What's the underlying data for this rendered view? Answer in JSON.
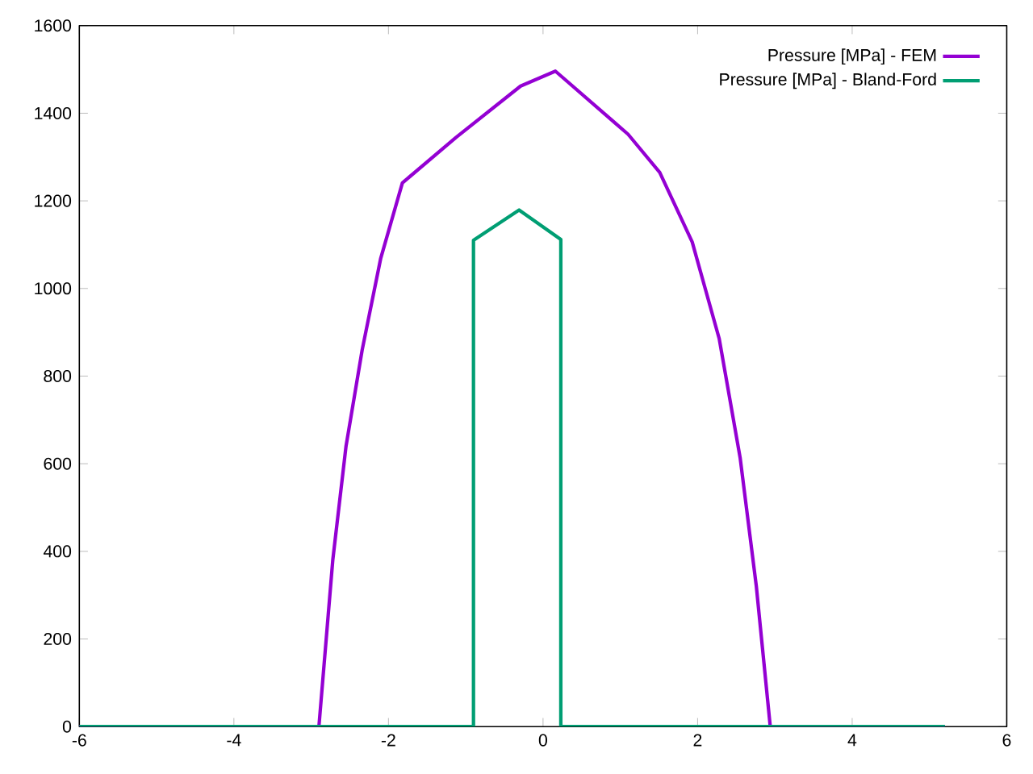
{
  "chart_data": {
    "type": "line",
    "series": [
      {
        "name": "Pressure [MPa] - FEM",
        "color": "#9400d3",
        "x": [
          -6,
          -2.9,
          -2.72,
          -2.55,
          -2.34,
          -2.1,
          -1.82,
          -1.125,
          -0.29,
          0.16,
          1.1,
          1.51,
          1.93,
          2.28,
          2.55,
          2.76,
          2.94,
          5.2
        ],
        "values": [
          0,
          0,
          381,
          639,
          860,
          1069,
          1241,
          1345,
          1462,
          1496,
          1352,
          1265,
          1106,
          885,
          614,
          320,
          0,
          0
        ]
      },
      {
        "name": "Pressure [MPa] - Bland-Ford",
        "color": "#009e73",
        "x": [
          -6,
          -0.9,
          -0.9,
          -0.31,
          0.23,
          0.23,
          5.2
        ],
        "values": [
          0,
          0,
          1110,
          1179,
          1112,
          0,
          0
        ]
      }
    ],
    "xlim": [
      -6,
      6
    ],
    "ylim": [
      0,
      1600
    ],
    "xticks": [
      -6,
      -4,
      -2,
      0,
      2,
      4,
      6
    ],
    "yticks": [
      0,
      200,
      400,
      600,
      800,
      1000,
      1200,
      1400,
      1600
    ],
    "grid": false,
    "legend": "top right",
    "marker": "none",
    "line_style": "solid"
  }
}
